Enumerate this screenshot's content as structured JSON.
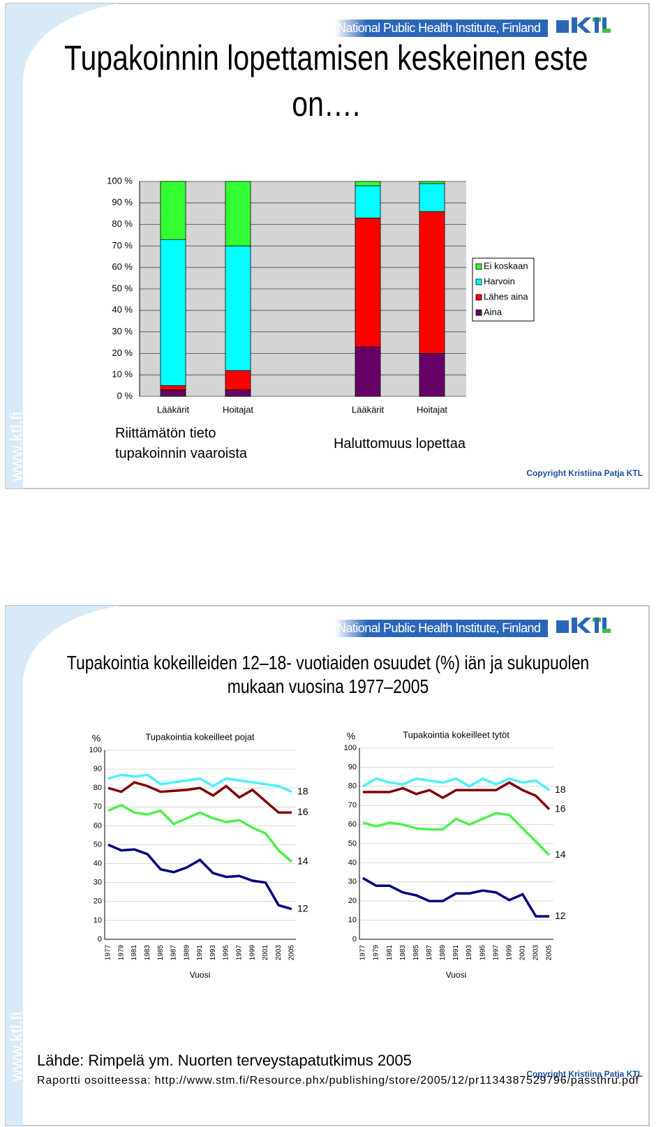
{
  "slides": [
    {
      "header": "National Public Health Institute, Finland",
      "title": "Tupakoinnin lopettamisen keskeinen este on….",
      "watermark": "www.ktl.fi",
      "copyright": "Copyright Kristiina Patja KTL"
    },
    {
      "header": "National Public Health Institute, Finland",
      "title": "Tupakointia kokeilleiden 12–18- vuotiaiden osuudet (%) iän ja sukupuolen mukaan vuosina 1977–2005",
      "watermark": "www.ktl.fi",
      "copyright": "Copyright Kristiina Patja KTL",
      "source": "Lähde: Rimpelä ym. Nuorten terveystapatutkimus 2005",
      "report": "Raportti osoitteessa: http://www.stm.fi/Resource.phx/publishing/store/2005/12/pr1134387529796/passthru.pdf"
    }
  ],
  "chart_data": [
    {
      "type": "stacked_bar",
      "categories": [
        "Lääkärit",
        "Hoitajat",
        "Lääkärit",
        "Hoitajat"
      ],
      "groups": [
        "Riittämätön tieto tupakoinnin vaaroista",
        "Haluttomuus lopettaa"
      ],
      "series": [
        {
          "name": "Aina",
          "color": "#660066",
          "values": [
            3,
            3,
            23,
            20
          ]
        },
        {
          "name": "Lähes aina",
          "color": "#ff0000",
          "values": [
            2,
            9,
            60,
            66
          ]
        },
        {
          "name": "Harvoin",
          "color": "#00ffff",
          "values": [
            68,
            58,
            15,
            13
          ]
        },
        {
          "name": "Ei koskaan",
          "color": "#33ff33",
          "values": [
            27,
            30,
            2,
            1
          ]
        }
      ],
      "ylim": [
        0,
        100
      ],
      "yticks": [
        {
          "value": 0,
          "label": "0 %"
        },
        {
          "value": 10,
          "label": "10 %"
        },
        {
          "value": 20,
          "label": "20 %"
        },
        {
          "value": 30,
          "label": "30 %"
        },
        {
          "value": 40,
          "label": "40 %"
        },
        {
          "value": 50,
          "label": "50 %"
        },
        {
          "value": 60,
          "label": "60 %"
        },
        {
          "value": 70,
          "label": "70 %"
        },
        {
          "value": 80,
          "label": "80 %"
        },
        {
          "value": 90,
          "label": "90 %"
        },
        {
          "value": 100,
          "label": "100 %"
        }
      ],
      "grid": true,
      "legend": "right"
    },
    {
      "type": "line",
      "title": "Tupakointia kokeilleet pojat",
      "y_label": "%",
      "x_label": "Vuosi",
      "categories": [
        "1977",
        "1979",
        "1981",
        "1983",
        "1985",
        "1987",
        "1989",
        "1991",
        "1993",
        "1995",
        "1997",
        "1999",
        "2001",
        "2003",
        "2005"
      ],
      "series": [
        {
          "name": "18",
          "color": "#4cf0ff",
          "values": [
            85,
            87,
            86,
            87,
            82,
            83,
            84,
            85,
            81,
            85,
            84,
            83,
            82,
            81,
            78
          ]
        },
        {
          "name": "16",
          "color": "#800000",
          "values": [
            80,
            78,
            83,
            81,
            78,
            78.5,
            79,
            80,
            76,
            81,
            75,
            79,
            73,
            67,
            67
          ]
        },
        {
          "name": "14",
          "color": "#4cf04c",
          "values": [
            68,
            71,
            67,
            66,
            68,
            61,
            64,
            67,
            64,
            62,
            63,
            59,
            56,
            47,
            41
          ]
        },
        {
          "name": "12",
          "color": "#000080",
          "values": [
            50,
            47,
            47.5,
            45,
            37,
            35.5,
            38,
            42,
            35,
            33,
            33.5,
            31,
            30,
            18,
            16
          ]
        }
      ],
      "ylim": [
        0,
        100
      ],
      "yticks": [
        0,
        10,
        20,
        30,
        40,
        50,
        60,
        70,
        80,
        90,
        100
      ],
      "grid": true
    },
    {
      "type": "line",
      "title": "Tupakointia kokeilleet tytöt",
      "y_label": "%",
      "x_label": "Vuosi",
      "categories": [
        "1977",
        "1979",
        "1981",
        "1983",
        "1985",
        "1987",
        "1989",
        "1991",
        "1993",
        "1995",
        "1997",
        "1999",
        "2001",
        "2003",
        "2005"
      ],
      "series": [
        {
          "name": "18",
          "color": "#4cf0ff",
          "values": [
            80,
            84,
            82,
            81,
            84,
            83,
            82,
            84,
            80,
            84,
            81,
            84,
            82,
            83,
            78
          ]
        },
        {
          "name": "16",
          "color": "#800000",
          "values": [
            77,
            77,
            77,
            79,
            76,
            78,
            74,
            78,
            78,
            78,
            78,
            82,
            78,
            75,
            68
          ]
        },
        {
          "name": "14",
          "color": "#4cf04c",
          "values": [
            61,
            59,
            61,
            60,
            58,
            57.5,
            57.5,
            63,
            60,
            63,
            66,
            65,
            58,
            51,
            44
          ]
        },
        {
          "name": "12",
          "color": "#000080",
          "values": [
            32,
            28,
            28,
            24.5,
            23,
            20,
            20,
            24,
            24,
            25.5,
            24.5,
            20.5,
            23.5,
            12,
            12
          ]
        }
      ],
      "ylim": [
        0,
        100
      ],
      "yticks": [
        0,
        10,
        20,
        30,
        40,
        50,
        60,
        70,
        80,
        90,
        100
      ],
      "grid": true
    }
  ]
}
